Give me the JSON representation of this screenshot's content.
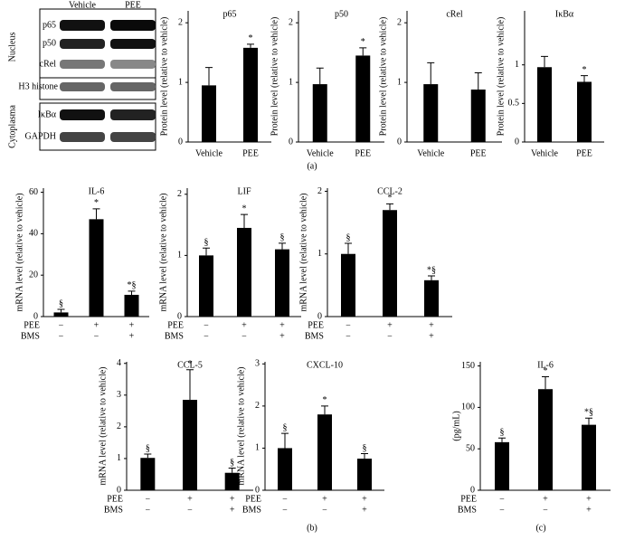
{
  "blot": {
    "lanes": [
      "Vehicle",
      "PEE"
    ],
    "rows": [
      "p65",
      "p50",
      "cRel",
      "H3 histone",
      "IκBα",
      "GAPDH"
    ],
    "groups": [
      "Nucleus",
      "Cytoplasma"
    ]
  },
  "panels": [
    "(a)",
    "(b)",
    "(c)"
  ],
  "chart_data": [
    {
      "type": "bar",
      "title": "p65",
      "ylabel": "Protein level (relative to vehicle)",
      "categories": [
        "Vehicle",
        "PEE"
      ],
      "values": [
        0.95,
        1.58
      ],
      "errors": [
        0.3,
        0.06
      ],
      "annotations": [
        null,
        "*"
      ],
      "ylim": [
        0,
        2.2
      ],
      "yticks": [
        0,
        1,
        2
      ],
      "color": "#000000"
    },
    {
      "type": "bar",
      "title": "p50",
      "ylabel": "Protein level (relative to vehicle)",
      "categories": [
        "Vehicle",
        "PEE"
      ],
      "values": [
        0.97,
        1.45
      ],
      "errors": [
        0.27,
        0.13
      ],
      "annotations": [
        null,
        "*"
      ],
      "ylim": [
        0,
        2.2
      ],
      "yticks": [
        0,
        1,
        2
      ],
      "color": "#000000"
    },
    {
      "type": "bar",
      "title": "cRel",
      "ylabel": "Protein level (relative to vehicle)",
      "categories": [
        "Vehicle",
        "PEE"
      ],
      "values": [
        0.97,
        0.88
      ],
      "errors": [
        0.36,
        0.28
      ],
      "annotations": [
        null,
        null
      ],
      "ylim": [
        0,
        2.2
      ],
      "yticks": [
        0,
        1,
        2
      ],
      "color": "#000000"
    },
    {
      "type": "bar",
      "title": "IκBα",
      "ylabel": "Protein level (relative to vehicle)",
      "categories": [
        "Vehicle",
        "PEE"
      ],
      "values": [
        0.97,
        0.78
      ],
      "errors": [
        0.14,
        0.08
      ],
      "annotations": [
        null,
        "*"
      ],
      "ylim": [
        0,
        1.7
      ],
      "yticks": [
        0,
        0.5,
        1
      ],
      "color": "#000000"
    },
    {
      "type": "bar",
      "title": "IL-6",
      "ylabel": "mRNA level (relative to vehicle)",
      "conditions": [
        {
          "name": "PEE",
          "values": [
            "−",
            "+",
            "+"
          ]
        },
        {
          "name": "BMS",
          "values": [
            "−",
            "−",
            "+"
          ]
        }
      ],
      "values": [
        2,
        47,
        10.5
      ],
      "errors": [
        1.5,
        5,
        1.8
      ],
      "annotations": [
        "§",
        "*",
        "*§"
      ],
      "ylim": [
        0,
        62
      ],
      "yticks": [
        0,
        20,
        40,
        60
      ],
      "color": "#000000"
    },
    {
      "type": "bar",
      "title": "LIF",
      "ylabel": "mRNA level (relative to vehicle)",
      "conditions": [
        {
          "name": "PEE",
          "values": [
            "−",
            "+",
            "+"
          ]
        },
        {
          "name": "BMS",
          "values": [
            "−",
            "−",
            "+"
          ]
        }
      ],
      "values": [
        1.0,
        1.45,
        1.1
      ],
      "errors": [
        0.12,
        0.22,
        0.1
      ],
      "annotations": [
        "§",
        "*",
        "§"
      ],
      "ylim": [
        0,
        2.1
      ],
      "yticks": [
        0,
        1,
        2
      ],
      "color": "#000000"
    },
    {
      "type": "bar",
      "title": "CCL-2",
      "ylabel": "mRNA level (relative to vehicle)",
      "conditions": [
        {
          "name": "PEE",
          "values": [
            "−",
            "+",
            "+"
          ]
        },
        {
          "name": "BMS",
          "values": [
            "−",
            "−",
            "+"
          ]
        }
      ],
      "values": [
        1.0,
        1.7,
        0.58
      ],
      "errors": [
        0.17,
        0.1,
        0.07
      ],
      "annotations": [
        "§",
        "*",
        "*§"
      ],
      "ylim": [
        0,
        2.05
      ],
      "yticks": [
        0,
        1,
        2
      ],
      "color": "#000000"
    },
    {
      "type": "bar",
      "title": "CCL-5",
      "ylabel": "mRNA level (relative to vehicle)",
      "conditions": [
        {
          "name": "PEE",
          "values": [
            "−",
            "+",
            "+"
          ]
        },
        {
          "name": "BMS",
          "values": [
            "−",
            "−",
            "+"
          ]
        }
      ],
      "values": [
        1.02,
        2.85,
        0.55
      ],
      "errors": [
        0.12,
        0.95,
        0.15
      ],
      "annotations": [
        "§",
        "*",
        "§"
      ],
      "ylim": [
        0,
        4.05
      ],
      "yticks": [
        0,
        1,
        2,
        3,
        4
      ],
      "color": "#000000"
    },
    {
      "type": "bar",
      "title": "CXCL-10",
      "ylabel": "mRNA level (relative to vehicle)",
      "conditions": [
        {
          "name": "PEE",
          "values": [
            "−",
            "+",
            "+"
          ]
        },
        {
          "name": "BMS",
          "values": [
            "−",
            "−",
            "+"
          ]
        }
      ],
      "values": [
        1.0,
        1.8,
        0.75
      ],
      "errors": [
        0.35,
        0.2,
        0.12
      ],
      "annotations": [
        "§",
        "*",
        "§"
      ],
      "ylim": [
        0,
        3.05
      ],
      "yticks": [
        0,
        1,
        2,
        3
      ],
      "color": "#000000"
    },
    {
      "type": "bar",
      "title": "IL-6",
      "ylabel": "(pg/mL)",
      "conditions": [
        {
          "name": "PEE",
          "values": [
            "−",
            "+",
            "+"
          ]
        },
        {
          "name": "BMS",
          "values": [
            "−",
            "−",
            "+"
          ]
        }
      ],
      "values": [
        58,
        122,
        79
      ],
      "errors": [
        5,
        15,
        8
      ],
      "annotations": [
        "§",
        "*",
        "*§"
      ],
      "ylim": [
        0,
        155
      ],
      "yticks": [
        0,
        50,
        100,
        150
      ],
      "color": "#000000"
    }
  ]
}
